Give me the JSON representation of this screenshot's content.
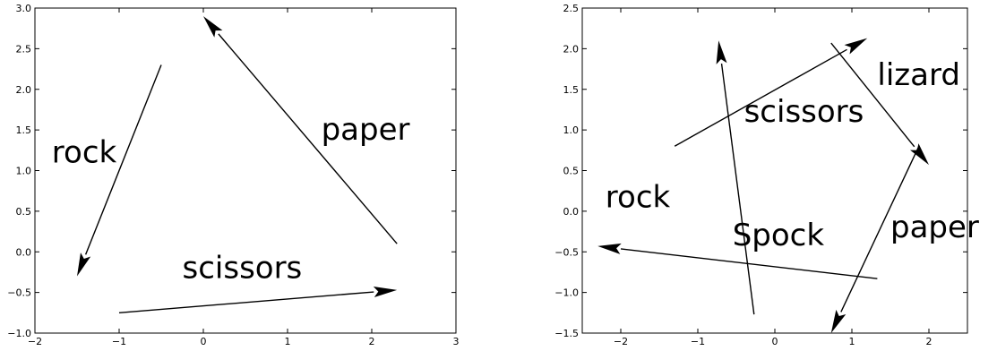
{
  "chart_data": [
    {
      "type": "annotated-arrows",
      "xlim": [
        -2,
        3
      ],
      "ylim": [
        -1,
        3
      ],
      "xticks": [
        "−2",
        "−1",
        "0",
        "1",
        "2",
        "3"
      ],
      "yticks": [
        "−1.0",
        "−0.5",
        "0.0",
        "0.5",
        "1.0",
        "1.5",
        "2.0",
        "2.5",
        "3.0"
      ],
      "xtick_values": [
        -2,
        -1,
        0,
        1,
        2,
        3
      ],
      "ytick_values": [
        -1,
        -0.5,
        0,
        0.5,
        1,
        1.5,
        2,
        2.5,
        3
      ],
      "arrows": [
        {
          "from": [
            -0.5,
            2.3
          ],
          "to": [
            -1.5,
            -0.3
          ]
        },
        {
          "from": [
            2.3,
            0.1
          ],
          "to": [
            0.0,
            2.9
          ]
        },
        {
          "from": [
            -1.0,
            -0.75
          ],
          "to": [
            2.3,
            -0.47
          ]
        }
      ],
      "labels": [
        {
          "text": "rock",
          "x": -1.8,
          "y": 1.1
        },
        {
          "text": "paper",
          "x": 1.4,
          "y": 1.38
        },
        {
          "text": "scissors",
          "x": -0.25,
          "y": -0.32
        }
      ]
    },
    {
      "type": "annotated-arrows",
      "xlim": [
        -2.5,
        2.5
      ],
      "ylim": [
        -1.5,
        2.5
      ],
      "xticks": [
        "−2",
        "−1",
        "0",
        "1",
        "2"
      ],
      "yticks": [
        "−1.5",
        "−1.0",
        "−0.5",
        "0.0",
        "0.5",
        "1.0",
        "1.5",
        "2.0",
        "2.5"
      ],
      "xtick_values": [
        -2,
        -1,
        0,
        1,
        2
      ],
      "ytick_values": [
        -1.5,
        -1,
        -0.5,
        0,
        0.5,
        1,
        1.5,
        2,
        2.5
      ],
      "arrows": [
        {
          "from": [
            -0.27,
            -1.27
          ],
          "to": [
            -0.73,
            2.1
          ]
        },
        {
          "from": [
            1.33,
            -0.83
          ],
          "to": [
            -2.3,
            -0.43
          ]
        },
        {
          "from": [
            -1.3,
            0.8
          ],
          "to": [
            1.2,
            2.13
          ]
        },
        {
          "from": [
            0.73,
            2.07
          ],
          "to": [
            2.0,
            0.57
          ]
        },
        {
          "from": [
            1.87,
            0.8
          ],
          "to": [
            0.73,
            -1.5
          ]
        }
      ],
      "labels": [
        {
          "text": "rock",
          "x": -2.2,
          "y": 0.05
        },
        {
          "text": "scissors",
          "x": -0.4,
          "y": 1.1
        },
        {
          "text": "lizard",
          "x": 1.33,
          "y": 1.55
        },
        {
          "text": "Spock",
          "x": -0.55,
          "y": -0.42
        },
        {
          "text": "paper",
          "x": 1.5,
          "y": -0.32
        }
      ]
    }
  ]
}
